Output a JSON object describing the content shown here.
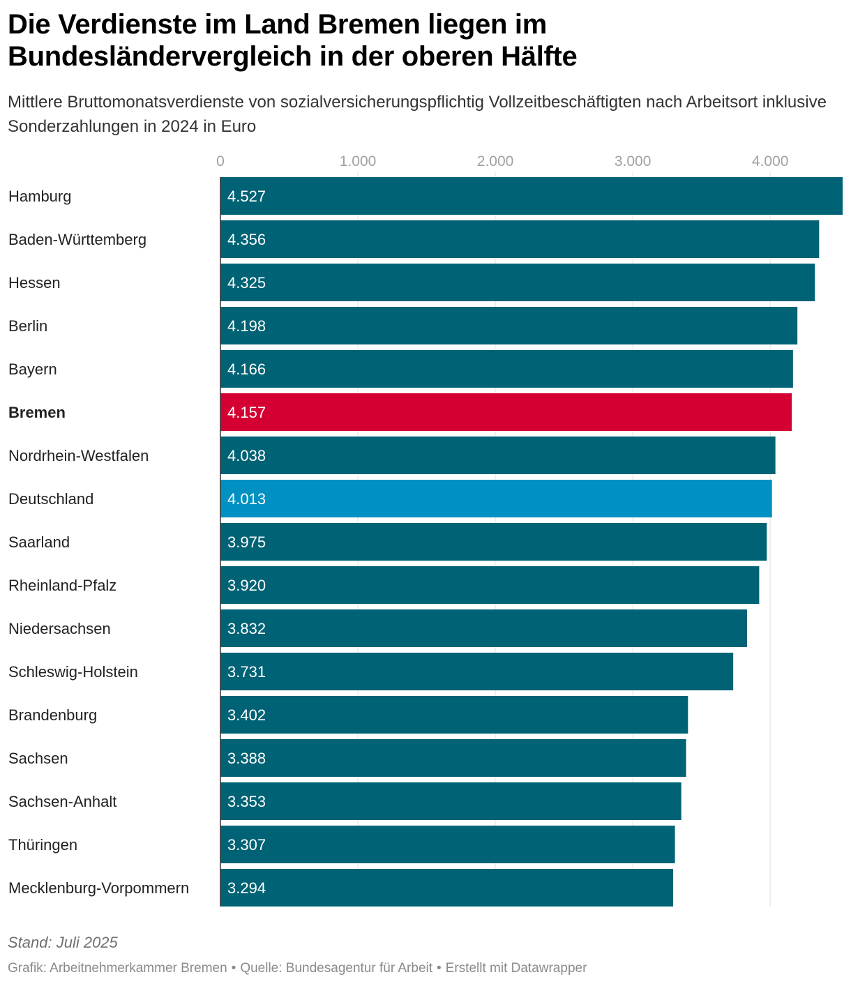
{
  "header": {
    "title": "Die Verdienste im Land Bremen liegen im Bundesländervergleich in der oberen Hälfte",
    "subtitle": "Mittlere Bruttomonatsverdienste von sozialversicherungspflichtig Vollzeitbeschäftigten nach Arbeitsort inklusive Sonderzahlungen in 2024 in Euro"
  },
  "footer": {
    "note": "Stand: Juli 2025",
    "credit_graphic": "Grafik: Arbeitnehmerkammer Bremen",
    "credit_source": "Quelle: Bundesagentur für Arbeit",
    "credit_tool": "Erstellt mit Datawrapper",
    "separator": "•"
  },
  "colors": {
    "default_bar": "#006275",
    "highlight_bar": "#d50032",
    "reference_bar": "#0090c2",
    "gridline": "#e3e3e3",
    "tick_label": "#a0a0a0",
    "category_label": "#222222",
    "value_label": "#ffffff"
  },
  "chart_data": {
    "type": "bar",
    "orientation": "horizontal",
    "title": "Die Verdienste im Land Bremen liegen im Bundesländervergleich in der oberen Hälfte",
    "xlabel": "",
    "ylabel": "",
    "xlim": [
      0,
      4527
    ],
    "xticks": [
      0,
      1000,
      2000,
      3000,
      4000
    ],
    "xtick_labels": [
      "0",
      "1.000",
      "2.000",
      "3.000",
      "4.000"
    ],
    "grid": true,
    "categories": [
      "Hamburg",
      "Baden-Württemberg",
      "Hessen",
      "Berlin",
      "Bayern",
      "Bremen",
      "Nordrhein-Westfalen",
      "Deutschland",
      "Saarland",
      "Rheinland-Pfalz",
      "Niedersachsen",
      "Schleswig-Holstein",
      "Brandenburg",
      "Sachsen",
      "Sachsen-Anhalt",
      "Thüringen",
      "Mecklenburg-Vorpommern"
    ],
    "values": [
      4527,
      4356,
      4325,
      4198,
      4166,
      4157,
      4038,
      4013,
      3975,
      3920,
      3832,
      3731,
      3402,
      3388,
      3353,
      3307,
      3294
    ],
    "value_labels": [
      "4.527",
      "4.356",
      "4.325",
      "4.198",
      "4.166",
      "4.157",
      "4.038",
      "4.013",
      "3.975",
      "3.920",
      "3.832",
      "3.731",
      "3.402",
      "3.388",
      "3.353",
      "3.307",
      "3.294"
    ],
    "highlight": "Bremen",
    "reference": "Deutschland",
    "bold_category": "Bremen"
  }
}
